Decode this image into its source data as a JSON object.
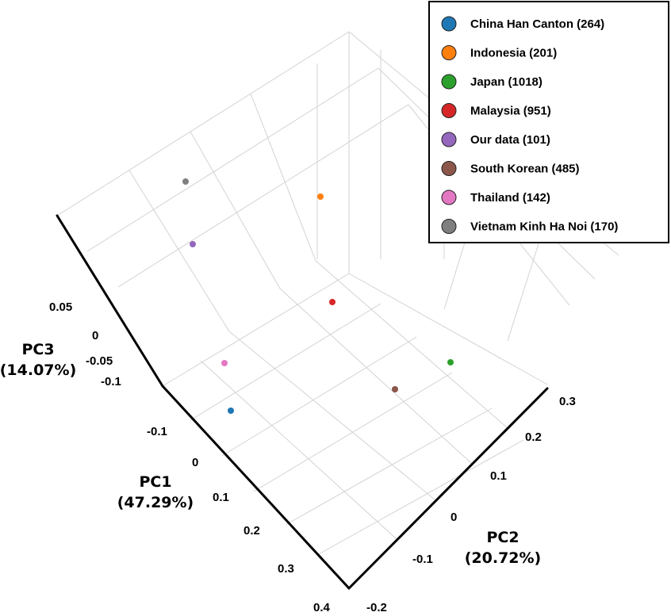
{
  "chart_data": {
    "type": "scatter3d",
    "axes": {
      "x": {
        "label": "PC1",
        "label_sub": "(47.29%)",
        "ticks": [
          "-0.1",
          "0",
          "0.1",
          "0.2",
          "0.3",
          "0.4"
        ]
      },
      "y": {
        "label": "PC2",
        "label_sub": "(20.72%)",
        "ticks": [
          "-0.2",
          "-0.1",
          "0",
          "0.1",
          "0.2",
          "0.3"
        ]
      },
      "z": {
        "label": "PC3",
        "label_sub": "(14.07%)",
        "ticks": [
          "-0.1",
          "-0.05",
          "0",
          "0.05"
        ]
      }
    },
    "grid": true,
    "legend_position": "top-right",
    "series": [
      {
        "name": "China Han Canton (264)",
        "color": "#1f77b4"
      },
      {
        "name": "Indonesia (201)",
        "color": "#ff7f0e"
      },
      {
        "name": "Japan (1018)",
        "color": "#2ca02c"
      },
      {
        "name": "Malaysia (951)",
        "color": "#d62728"
      },
      {
        "name": "Our data (101)",
        "color": "#9467bd"
      },
      {
        "name": "South Korean (485)",
        "color": "#8c564b"
      },
      {
        "name": "Thailand (142)",
        "color": "#e377c2"
      },
      {
        "name": "Vietnam Kinh Ha Noi (170)",
        "color": "#7f7f7f"
      }
    ]
  }
}
